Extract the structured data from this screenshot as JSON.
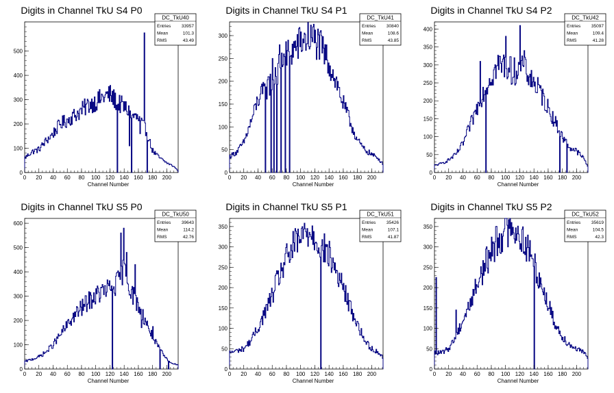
{
  "chart_data": [
    {
      "type": "bar",
      "title": "Digits in Channel TkU S4 P0",
      "xlabel": "Channel Number",
      "ylabel": "",
      "xlim": [
        0,
        216
      ],
      "ylim": [
        0,
        620
      ],
      "xticks": [
        0,
        20,
        40,
        60,
        80,
        100,
        120,
        140,
        160,
        180,
        200
      ],
      "yticks": [
        0,
        100,
        200,
        300,
        400,
        500
      ],
      "stats": {
        "name": "DC_TkU40",
        "entries_label": "Entries",
        "entries": "33957",
        "mean_label": "Mean",
        "mean": "101.3",
        "rms_label": "RMS",
        "rms": "43.49"
      },
      "x": [
        0,
        10,
        20,
        30,
        40,
        50,
        60,
        70,
        80,
        90,
        100,
        110,
        120,
        130,
        140,
        150,
        160,
        170,
        180,
        190,
        200,
        210,
        215
      ],
      "values": [
        60,
        85,
        95,
        130,
        160,
        200,
        215,
        235,
        255,
        280,
        290,
        310,
        320,
        290,
        270,
        240,
        220,
        180,
        90,
        60,
        40,
        25,
        10
      ],
      "spikes": [
        {
          "x": 130,
          "y": 130
        },
        {
          "x": 147,
          "y": 110
        },
        {
          "x": 162,
          "y": 160
        },
        {
          "x": 168,
          "y": 575
        },
        {
          "x": 174,
          "y": 130
        }
      ],
      "dips": [
        {
          "x": 130,
          "y": 0
        },
        {
          "x": 150,
          "y": 0
        },
        {
          "x": 172,
          "y": 0
        }
      ]
    },
    {
      "type": "bar",
      "title": "Digits in Channel TkU S4 P1",
      "xlabel": "Channel Number",
      "ylabel": "",
      "xlim": [
        0,
        216
      ],
      "ylim": [
        0,
        330
      ],
      "xticks": [
        0,
        20,
        40,
        60,
        80,
        100,
        120,
        140,
        160,
        180,
        200
      ],
      "yticks": [
        0,
        50,
        100,
        150,
        200,
        250,
        300
      ],
      "stats": {
        "name": "DC_TkU41",
        "entries_label": "Entries",
        "entries": "30840",
        "mean_label": "Mean",
        "mean": "108.6",
        "rms_label": "RMS",
        "rms": "43.85"
      },
      "x": [
        0,
        10,
        20,
        30,
        40,
        50,
        60,
        70,
        80,
        90,
        100,
        110,
        120,
        130,
        140,
        150,
        160,
        170,
        180,
        190,
        200,
        210,
        215
      ],
      "values": [
        35,
        45,
        65,
        110,
        160,
        180,
        200,
        230,
        255,
        270,
        285,
        295,
        290,
        270,
        240,
        200,
        150,
        110,
        70,
        50,
        40,
        30,
        20
      ],
      "spikes": [
        {
          "x": 54,
          "y": 210
        },
        {
          "x": 60,
          "y": 250
        },
        {
          "x": 64,
          "y": 230
        },
        {
          "x": 70,
          "y": 280
        },
        {
          "x": 76,
          "y": 260
        },
        {
          "x": 82,
          "y": 290
        },
        {
          "x": 118,
          "y": 325
        }
      ],
      "dips": [
        {
          "x": 50,
          "y": 0
        },
        {
          "x": 58,
          "y": 0
        },
        {
          "x": 62,
          "y": 0
        },
        {
          "x": 66,
          "y": 0
        },
        {
          "x": 72,
          "y": 0
        },
        {
          "x": 78,
          "y": 0
        },
        {
          "x": 84,
          "y": 0
        }
      ]
    },
    {
      "type": "bar",
      "title": "Digits in Channel TkU S4 P2",
      "xlabel": "Channel Number",
      "ylabel": "",
      "xlim": [
        0,
        216
      ],
      "ylim": [
        0,
        420
      ],
      "xticks": [
        0,
        20,
        40,
        60,
        80,
        100,
        120,
        140,
        160,
        180,
        200
      ],
      "yticks": [
        0,
        50,
        100,
        150,
        200,
        250,
        300,
        350,
        400
      ],
      "stats": {
        "name": "DC_TkU42",
        "entries_label": "Entries",
        "entries": "35097",
        "mean_label": "Mean",
        "mean": "109.4",
        "rms_label": "RMS",
        "rms": "41.28"
      },
      "x": [
        0,
        10,
        20,
        30,
        40,
        50,
        60,
        70,
        80,
        90,
        100,
        110,
        120,
        130,
        140,
        150,
        160,
        170,
        180,
        190,
        200,
        210,
        215
      ],
      "values": [
        20,
        25,
        35,
        50,
        80,
        130,
        180,
        230,
        270,
        300,
        300,
        280,
        290,
        280,
        250,
        220,
        180,
        140,
        100,
        70,
        60,
        40,
        20
      ],
      "spikes": [
        {
          "x": 64,
          "y": 310
        },
        {
          "x": 100,
          "y": 380
        },
        {
          "x": 120,
          "y": 410
        },
        {
          "x": 126,
          "y": 340
        }
      ],
      "dips": [
        {
          "x": 72,
          "y": 0
        },
        {
          "x": 176,
          "y": 0
        },
        {
          "x": 186,
          "y": 0
        }
      ]
    },
    {
      "type": "bar",
      "title": "Digits in Channel TkU S5 P0",
      "xlabel": "Channel Number",
      "ylabel": "",
      "xlim": [
        0,
        216
      ],
      "ylim": [
        0,
        620
      ],
      "xticks": [
        0,
        20,
        40,
        60,
        80,
        100,
        120,
        140,
        160,
        180,
        200
      ],
      "yticks": [
        0,
        100,
        200,
        300,
        400,
        500,
        600
      ],
      "stats": {
        "name": "DC_TkU50",
        "entries_label": "Entries",
        "entries": "39643",
        "mean_label": "Mean",
        "mean": "114.2",
        "rms_label": "RMS",
        "rms": "42.76"
      },
      "x": [
        0,
        10,
        20,
        30,
        40,
        50,
        60,
        70,
        80,
        90,
        100,
        110,
        120,
        130,
        140,
        150,
        160,
        170,
        180,
        190,
        200,
        210,
        215
      ],
      "values": [
        30,
        40,
        50,
        70,
        100,
        140,
        180,
        220,
        250,
        280,
        300,
        320,
        330,
        350,
        420,
        320,
        260,
        200,
        130,
        80,
        40,
        20,
        20
      ],
      "spikes": [
        {
          "x": 123,
          "y": 20
        },
        {
          "x": 135,
          "y": 560
        },
        {
          "x": 139,
          "y": 580
        },
        {
          "x": 143,
          "y": 480
        },
        {
          "x": 155,
          "y": 430
        },
        {
          "x": 164,
          "y": 170
        },
        {
          "x": 180,
          "y": 175
        }
      ],
      "dips": [
        {
          "x": 123,
          "y": 0
        },
        {
          "x": 190,
          "y": 0
        },
        {
          "x": 202,
          "y": 0
        }
      ]
    },
    {
      "type": "bar",
      "title": "Digits in Channel TkU S5 P1",
      "xlabel": "Channel Number",
      "ylabel": "",
      "xlim": [
        0,
        216
      ],
      "ylim": [
        0,
        370
      ],
      "xticks": [
        0,
        20,
        40,
        60,
        80,
        100,
        120,
        140,
        160,
        180,
        200
      ],
      "yticks": [
        0,
        50,
        100,
        150,
        200,
        250,
        300,
        350
      ],
      "stats": {
        "name": "DC_TkU51",
        "entries_label": "Entries",
        "entries": "35426",
        "mean_label": "Mean",
        "mean": "107.1",
        "rms_label": "RMS",
        "rms": "41.87"
      },
      "x": [
        0,
        10,
        20,
        30,
        40,
        50,
        60,
        70,
        80,
        90,
        100,
        110,
        120,
        130,
        140,
        150,
        160,
        170,
        180,
        190,
        200,
        210,
        215
      ],
      "values": [
        40,
        45,
        50,
        70,
        100,
        140,
        180,
        230,
        270,
        300,
        320,
        340,
        330,
        300,
        280,
        240,
        200,
        150,
        110,
        70,
        50,
        40,
        30
      ],
      "spikes": [
        {
          "x": 106,
          "y": 345
        },
        {
          "x": 128,
          "y": 135
        }
      ],
      "dips": [
        {
          "x": 128,
          "y": 0
        }
      ]
    },
    {
      "type": "bar",
      "title": "Digits in Channel TkU S5 P2",
      "xlabel": "Channel Number",
      "ylabel": "",
      "xlim": [
        0,
        216
      ],
      "ylim": [
        0,
        370
      ],
      "xticks": [
        0,
        20,
        40,
        60,
        80,
        100,
        120,
        140,
        160,
        180,
        200
      ],
      "yticks": [
        0,
        50,
        100,
        150,
        200,
        250,
        300,
        350
      ],
      "stats": {
        "name": "DC_TkU52",
        "entries_label": "Entries",
        "entries": "35619",
        "mean_label": "Mean",
        "mean": "104.5",
        "rms_label": "RMS",
        "rms": "42.3"
      },
      "x": [
        0,
        10,
        20,
        30,
        40,
        50,
        60,
        70,
        80,
        90,
        100,
        110,
        120,
        130,
        140,
        150,
        160,
        170,
        180,
        190,
        200,
        210,
        215
      ],
      "values": [
        40,
        40,
        50,
        80,
        120,
        160,
        210,
        250,
        290,
        320,
        340,
        350,
        330,
        300,
        260,
        210,
        160,
        110,
        80,
        60,
        50,
        40,
        30
      ],
      "spikes": [
        {
          "x": 2,
          "y": 225
        },
        {
          "x": 30,
          "y": 145
        },
        {
          "x": 86,
          "y": 350
        },
        {
          "x": 108,
          "y": 360
        },
        {
          "x": 140,
          "y": 160
        }
      ],
      "dips": [
        {
          "x": 140,
          "y": 0
        }
      ]
    }
  ]
}
